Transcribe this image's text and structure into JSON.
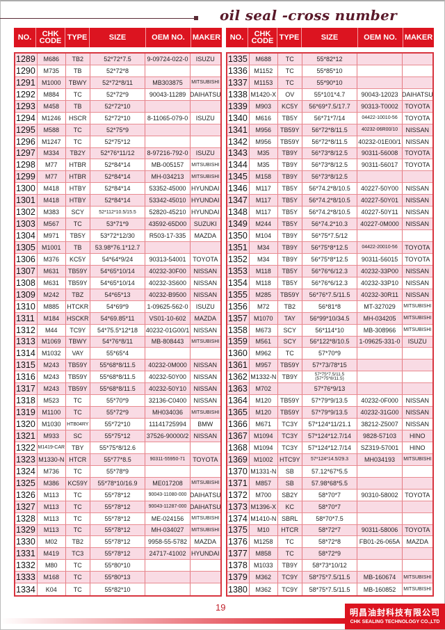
{
  "title": "oil seal -cross number",
  "colors": {
    "header": "#dc1420",
    "row_alt": "#f9dbe4",
    "title": "#5a1a2a"
  },
  "columns": [
    "NO.",
    "CHK CODE",
    "TYPE",
    "SIZE",
    "OEM NO.",
    "MAKER"
  ],
  "left_rows": [
    [
      "1289",
      "M686",
      "TB2",
      "52*72*7.5",
      "9-09724-022-0",
      "ISUZU"
    ],
    [
      "1290",
      "M735",
      "TB",
      "52*72*8",
      "",
      ""
    ],
    [
      "1291",
      "M1000",
      "TBWY",
      "52*72*8/11",
      "MB303875",
      "MITSUBISHI"
    ],
    [
      "1292",
      "M884",
      "TC",
      "52*72*9",
      "90043-11289",
      "DAIHATSU"
    ],
    [
      "1293",
      "M458",
      "TB",
      "52*72*10",
      "",
      ""
    ],
    [
      "1294",
      "M1246",
      "HSCR",
      "52*72*10",
      "8-11065-079-0",
      "ISUZU"
    ],
    [
      "1295",
      "M588",
      "TC",
      "52*75*9",
      "",
      ""
    ],
    [
      "1296",
      "M1247",
      "TC",
      "52*75*12",
      "",
      ""
    ],
    [
      "1297",
      "M334",
      "TB2Y",
      "52*76*11/12",
      "8-97216-792-0",
      "ISUZU"
    ],
    [
      "1298",
      "M77",
      "HTBR",
      "52*84*14",
      "MB-005157",
      "MITSUBISHI"
    ],
    [
      "1299",
      "M77",
      "HTBR",
      "52*84*14",
      "MH-034213",
      "MITSUBISHI"
    ],
    [
      "1300",
      "M418",
      "HTBY",
      "52*84*14",
      "53352-45000",
      "HYUNDAI"
    ],
    [
      "1301",
      "M418",
      "HTBY",
      "52*84*14",
      "53342-45010",
      "HYUNDAI"
    ],
    [
      "1302",
      "M383",
      "SCY",
      "52*112*10.5/15.5",
      "52820-45210",
      "HYUNDAI"
    ],
    [
      "1303",
      "M567",
      "TC",
      "53*71*9",
      "43592-65D00",
      "SUZUKI"
    ],
    [
      "1304",
      "M971",
      "TB5Y",
      "53*72*12/30",
      "R503-17-335",
      "MAZDA"
    ],
    [
      "1305",
      "M1001",
      "TB",
      "53.98*76.1*12.7",
      "",
      ""
    ],
    [
      "1306",
      "M376",
      "KC5Y",
      "54*64*9/24",
      "90313-54001",
      "TOYOTA"
    ],
    [
      "1307",
      "M631",
      "TB59Y",
      "54*65*10/14",
      "40232-30F00",
      "NISSAN"
    ],
    [
      "1308",
      "M631",
      "TB59Y",
      "54*65*10/14",
      "40232-3S600",
      "NISSAN"
    ],
    [
      "1309",
      "M242",
      "TBZ",
      "54*65*13",
      "40232-B9500",
      "NISSAN"
    ],
    [
      "1310",
      "M885",
      "HTCKR",
      "54*69*9",
      "1-09625-562-0",
      "ISUZU"
    ],
    [
      "1311",
      "M184",
      "HSCKR",
      "54*69.85*11",
      "VS01-10-602",
      "MAZDA"
    ],
    [
      "1312",
      "M44",
      "TC9Y",
      "54*75.5*12*18",
      "40232-01G00/1",
      "NISSAN"
    ],
    [
      "1313",
      "M1069",
      "TBWY",
      "54*76*8/11",
      "MB-808443",
      "MITSUBISHI"
    ],
    [
      "1314",
      "M1032",
      "VAY",
      "55*65*4",
      "",
      ""
    ],
    [
      "1315",
      "M243",
      "TB59Y",
      "55*68*8/11.5",
      "40232-0M000",
      "NISSAN"
    ],
    [
      "1316",
      "M243",
      "TB59Y",
      "55*68*8/11.5",
      "40232-50Y00",
      "NISSAN"
    ],
    [
      "1317",
      "M243",
      "TB59Y",
      "55*68*8/11.5",
      "40232-50Y10",
      "NISSAN"
    ],
    [
      "1318",
      "M523",
      "TC",
      "55*70*9",
      "32136-C0400",
      "NISSAN"
    ],
    [
      "1319",
      "M1100",
      "TC",
      "55*72*9",
      "MH034036",
      "MITSUBISHI"
    ],
    [
      "1320",
      "M1030",
      "HTB04RY",
      "55*72*10",
      "11141725994",
      "BMW"
    ],
    [
      "1321",
      "M933",
      "SC",
      "55*75*12",
      "37526-90000/2",
      "NISSAN"
    ],
    [
      "1322",
      "M1419-CAR",
      "TBY",
      "55*75*8/12.6",
      "",
      ""
    ],
    [
      "1323",
      "M1330-N",
      "HTCR",
      "55*77*8.5",
      "90311-55950-71",
      "TOYOTA"
    ],
    [
      "1324",
      "M736",
      "TC",
      "55*78*9",
      "",
      ""
    ],
    [
      "1325",
      "M386",
      "KC59Y",
      "55*78*10/16.9",
      "ME017208",
      "MITSUBISHI"
    ],
    [
      "1326",
      "M113",
      "TC",
      "55*78*12",
      "90043-11080-000",
      "DAIHATSU"
    ],
    [
      "1327",
      "M113",
      "TC",
      "55*78*12",
      "90043-11287-000",
      "DAIHATSU"
    ],
    [
      "1328",
      "M113",
      "TC",
      "55*78*12",
      "ME-024156",
      "MITSUBISHI"
    ],
    [
      "1329",
      "M113",
      "TC",
      "55*78*12",
      "MH-034027",
      "MITSUBISHI"
    ],
    [
      "1330",
      "M02",
      "TB2",
      "55*78*12",
      "9958-55-5782",
      "MAZDA"
    ],
    [
      "1331",
      "M419",
      "TC3",
      "55*78*12",
      "24717-41002",
      "HYUNDAI"
    ],
    [
      "1332",
      "M80",
      "TC",
      "55*80*10",
      "",
      ""
    ],
    [
      "1333",
      "M168",
      "TC",
      "55*80*13",
      "",
      ""
    ],
    [
      "1334",
      "K04",
      "TC",
      "55*82*10",
      "",
      ""
    ]
  ],
  "right_rows": [
    [
      "1335",
      "M688",
      "TC",
      "55*82*12",
      "",
      ""
    ],
    [
      "1336",
      "M1152",
      "TC",
      "55*85*10",
      "",
      ""
    ],
    [
      "1337",
      "M1153",
      "TC",
      "55*90*10",
      "",
      ""
    ],
    [
      "1338",
      "M1420-X",
      "OV",
      "55*101*4.7",
      "90043-12023",
      "DAIHATSU"
    ],
    [
      "1339",
      "M903",
      "KC5Y",
      "56*69*7.5/17.7",
      "90313-T0002",
      "TOYOTA"
    ],
    [
      "1340",
      "M616",
      "TB5Y",
      "56*71*7/14",
      "04422-10010-56",
      "TOYOTA"
    ],
    [
      "1341",
      "M956",
      "TB59Y",
      "56*72*8/11.5",
      "40232-06R00/10",
      "NISSAN"
    ],
    [
      "1342",
      "M956",
      "TB59Y",
      "56*72*8/11.5",
      "40232-01E00/1",
      "NISSAN"
    ],
    [
      "1343",
      "M35",
      "TB9Y",
      "56*73*8/12.5",
      "90311-56008",
      "TOYOTA"
    ],
    [
      "1344",
      "M35",
      "TB9Y",
      "56*73*8/12.5",
      "90311-56017",
      "TOYOTA"
    ],
    [
      "1345",
      "M158",
      "TB9Y",
      "56*73*8/12.5",
      "",
      ""
    ],
    [
      "1346",
      "M117",
      "TB5Y",
      "56*74.2*8/10.5",
      "40227-50Y00",
      "NISSAN"
    ],
    [
      "1347",
      "M117",
      "TB5Y",
      "56*74.2*8/10.5",
      "40227-50Y01",
      "NISSAN"
    ],
    [
      "1348",
      "M117",
      "TB5Y",
      "56*74.2*8/10.5",
      "40227-50Y11",
      "NISSAN"
    ],
    [
      "1349",
      "M244",
      "TB5Y",
      "56*74.2*10.3",
      "40227-0M000",
      "NISSAN"
    ],
    [
      "1350",
      "M104",
      "TB9Y",
      "56*75*7.5/12",
      "",
      ""
    ],
    [
      "1351",
      "M34",
      "TB9Y",
      "56*75*8*12.5",
      "04422-20010-56",
      "TOYOTA"
    ],
    [
      "1352",
      "M34",
      "TB9Y",
      "56*75*8*12.5",
      "90311-56015",
      "TOYOTA"
    ],
    [
      "1353",
      "M118",
      "TB5Y",
      "56*76*6/12.3",
      "40232-33P00",
      "NISSAN"
    ],
    [
      "1354",
      "M118",
      "TB5Y",
      "56*76*6/12.3",
      "40232-33P10",
      "NISSAN"
    ],
    [
      "1355",
      "M285",
      "TB59Y",
      "56*76*7.5/11.5",
      "40232-30R11",
      "NISSAN"
    ],
    [
      "1356",
      "M72",
      "TB2",
      "56*81*8",
      "MT-327029",
      "MITSUBISHI"
    ],
    [
      "1357",
      "M1070",
      "TAY",
      "56*99*10/34.5",
      "MH-034205",
      "MITSUBISHI"
    ],
    [
      "1358",
      "M673",
      "SCY",
      "56*114*10",
      "MB-308966",
      "MITSUBISHI"
    ],
    [
      "1359",
      "M561",
      "SCY",
      "56*122*8/10.5",
      "1-09625-331-0",
      "ISUZU"
    ],
    [
      "1360",
      "M962",
      "TC",
      "57*70*9",
      "",
      ""
    ],
    [
      "1361",
      "M957",
      "TB59Y",
      "57*73/78*15",
      "",
      ""
    ],
    [
      "1362",
      "M1332-N",
      "TB9Y",
      "57*75*7.5/11.5\n(57*75*8/11.5)",
      "",
      ""
    ],
    [
      "1363",
      "M702",
      "",
      "57*76*9/13",
      "",
      ""
    ],
    [
      "1364",
      "M120",
      "TB59Y",
      "57*79*9/13.5",
      "40232-0F000",
      "NISSAN"
    ],
    [
      "1365",
      "M120",
      "TB59Y",
      "57*79*9/13.5",
      "40232-31G00",
      "NISSAN"
    ],
    [
      "1366",
      "M671",
      "TC3Y",
      "57*124*11/21.1",
      "38212-Z5007",
      "NISSAN"
    ],
    [
      "1367",
      "M1094",
      "TC3Y",
      "57*124*12.7/14",
      "9828-57103",
      "HINO"
    ],
    [
      "1368",
      "M1094",
      "TC3Y",
      "57*124*12.7/14",
      "SZ319-57001",
      "HINO"
    ],
    [
      "1369",
      "M1002",
      "HTC9Y",
      "57*124*14.5/29.3",
      "MH034193",
      "MITSUBISHI"
    ],
    [
      "1370",
      "M1331-N",
      "SB",
      "57.12*67*5.5",
      "",
      ""
    ],
    [
      "1371",
      "M857",
      "SB",
      "57.98*68*5.5",
      "",
      ""
    ],
    [
      "1372",
      "M700",
      "SB2Y",
      "58*70*7",
      "90310-58002",
      "TOYOTA"
    ],
    [
      "1373",
      "M1396-X",
      "KC",
      "58*70*7",
      "",
      ""
    ],
    [
      "1374",
      "M1410-N",
      "SBRL",
      "58*70*7.5",
      "",
      ""
    ],
    [
      "1375",
      "M10",
      "HTCR",
      "58*72*7",
      "90311-58006",
      "TOYOTA"
    ],
    [
      "1376",
      "M1258",
      "TC",
      "58*72*8",
      "FB01-26-065A",
      "MAZDA"
    ],
    [
      "1377",
      "M858",
      "TC",
      "58*72*9",
      "",
      ""
    ],
    [
      "1378",
      "M1033",
      "TB9Y",
      "58*73*10/12",
      "",
      ""
    ],
    [
      "1379",
      "M362",
      "TC9Y",
      "58*75*7.5/11.5",
      "MB-160674",
      "MITSUBISHI"
    ],
    [
      "1380",
      "M362",
      "TC9Y",
      "58*75*7.5/11.5",
      "MB-160852",
      "MITSUBISHI"
    ]
  ],
  "footer": {
    "page_number": "19",
    "company_cn": "明昌油封科技有限公司",
    "company_en": "CHK SEALING TECHNOLOGY CO.,LTD"
  }
}
